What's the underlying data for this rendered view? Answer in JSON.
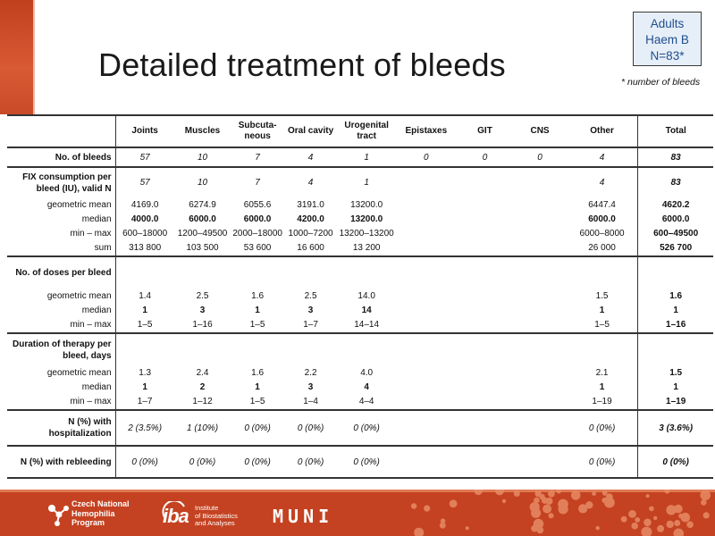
{
  "slide": {
    "title": "Detailed treatment of bleeds",
    "cohort": {
      "line1": "Adults",
      "line2": "Haem B",
      "line3": "N=83*"
    },
    "footnote": "* number of bleeds"
  },
  "table": {
    "columns": [
      "Joints",
      "Muscles",
      "Subcuta-\nneous",
      "Oral cavity",
      "Urogenital\ntract",
      "Epistaxes",
      "GIT",
      "CNS",
      "Other",
      "Total"
    ],
    "rows": {
      "no_bleeds": {
        "label": "No. of bleeds",
        "values": [
          "57",
          "10",
          "7",
          "4",
          "1",
          "0",
          "0",
          "0",
          "4",
          "83"
        ]
      },
      "fix_header": {
        "label": "FIX consumption per bleed (IU), valid N",
        "values": [
          "57",
          "10",
          "7",
          "4",
          "1",
          "",
          "",
          "",
          "4",
          "83"
        ]
      },
      "fix_geo": {
        "label": "geometric mean",
        "values": [
          "4169.0",
          "6274.9",
          "6055.6",
          "3191.0",
          "13200.0",
          "",
          "",
          "",
          "6447.4",
          "4620.2"
        ]
      },
      "fix_median": {
        "label": "median",
        "values": [
          "4000.0",
          "6000.0",
          "6000.0",
          "4200.0",
          "13200.0",
          "",
          "",
          "",
          "6000.0",
          "6000.0"
        ]
      },
      "fix_minmax": {
        "label": "min – max",
        "values": [
          "600–18000",
          "1200–49500",
          "2000–18000",
          "1000–7200",
          "13200–13200",
          "",
          "",
          "",
          "6000–8000",
          "600–49500"
        ]
      },
      "fix_sum": {
        "label": "sum",
        "values": [
          "313 800",
          "103 500",
          "53 600",
          "16 600",
          "13 200",
          "",
          "",
          "",
          "26 000",
          "526 700"
        ]
      },
      "doses_header": {
        "label": "No. of doses per bleed"
      },
      "doses_geo": {
        "label": "geometric mean",
        "values": [
          "1.4",
          "2.5",
          "1.6",
          "2.5",
          "14.0",
          "",
          "",
          "",
          "1.5",
          "1.6"
        ]
      },
      "doses_median": {
        "label": "median",
        "values": [
          "1",
          "3",
          "1",
          "3",
          "14",
          "",
          "",
          "",
          "1",
          "1"
        ]
      },
      "doses_minmax": {
        "label": "min – max",
        "values": [
          "1–5",
          "1–16",
          "1–5",
          "1–7",
          "14–14",
          "",
          "",
          "",
          "1–5",
          "1–16"
        ]
      },
      "dur_header": {
        "label": "Duration of therapy per bleed, days"
      },
      "dur_geo": {
        "label": "geometric mean",
        "values": [
          "1.3",
          "2.4",
          "1.6",
          "2.2",
          "4.0",
          "",
          "",
          "",
          "2.1",
          "1.5"
        ]
      },
      "dur_median": {
        "label": "median",
        "values": [
          "1",
          "2",
          "1",
          "3",
          "4",
          "",
          "",
          "",
          "1",
          "1"
        ]
      },
      "dur_minmax": {
        "label": "min – max",
        "values": [
          "1–7",
          "1–12",
          "1–5",
          "1–4",
          "4–4",
          "",
          "",
          "",
          "1–19",
          "1–19"
        ]
      },
      "hosp": {
        "label": "N (%) with hospitalization",
        "values": [
          "2 (3.5%)",
          "1 (10%)",
          "0 (0%)",
          "0 (0%)",
          "0 (0%)",
          "",
          "",
          "",
          "0 (0%)",
          "3 (3.6%)"
        ]
      },
      "rebleed": {
        "label": "N (%) with rebleeding",
        "values": [
          "0 (0%)",
          "0 (0%)",
          "0 (0%)",
          "0 (0%)",
          "0 (0%)",
          "",
          "",
          "",
          "0 (0%)",
          "0 (0%)"
        ]
      }
    }
  },
  "footer": {
    "logo1": {
      "line1": "Czech National",
      "line2": "Hemophilia",
      "line3": "Program"
    },
    "logo2": {
      "big": "iba",
      "line1": "Institute",
      "line2": "of Biostatistics",
      "line3": "and Analyses"
    },
    "logo3": "MUNI",
    "colors": {
      "footer_bg": "#c44221",
      "accent": "#1f4e8c",
      "left_bar": "#c0401e"
    }
  }
}
